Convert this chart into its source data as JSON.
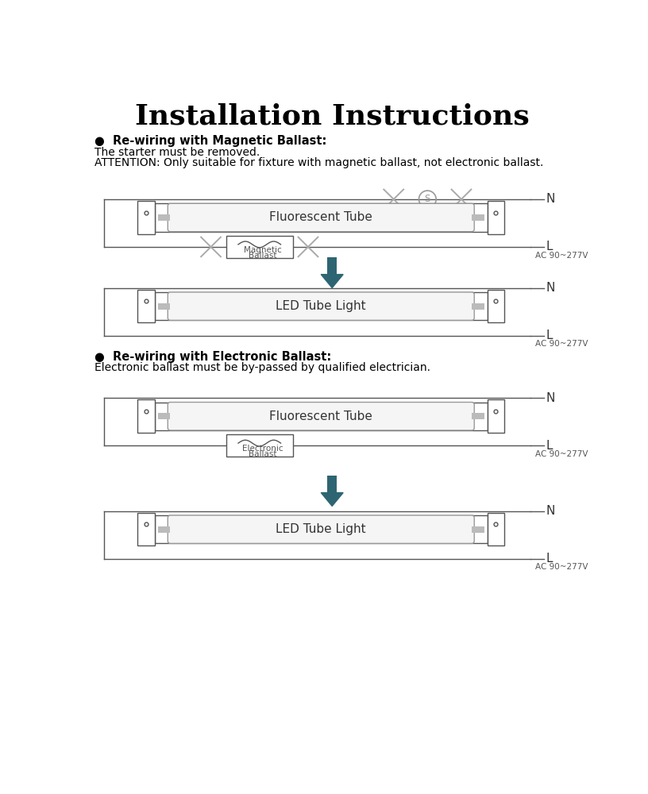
{
  "title": "Installation Instructions",
  "title_fontsize": 26,
  "title_fontweight": "bold",
  "bg_color": "#ffffff",
  "line_color": "#555555",
  "cross_color": "#aaaaaa",
  "arrow_color": "#2e6573",
  "section1_header": "●  Re-wiring with Magnetic Ballast:",
  "section1_line1": "The starter must be removed.",
  "section1_line2": "ATTENTION: Only suitable for fixture with magnetic ballast, not electronic ballast.",
  "section2_header": "●  Re-wiring with Electronic Ballast:",
  "section2_line1": "Electronic ballast must be by-passed by qualified electrician.",
  "diag1_tube_label": "Fluorescent Tube",
  "diag1_ballast_label": "Magnetic\nBallast",
  "diag2_tube_label": "LED Tube Light",
  "diag3_tube_label": "Fluorescent Tube",
  "diag3_ballast_label": "Electronic\nBallast",
  "diag4_tube_label": "LED Tube Light",
  "voltage_label": "AC 90~277V",
  "N_label": "N",
  "L_label": "L",
  "lw": 1.0,
  "lw_thick": 1.4
}
